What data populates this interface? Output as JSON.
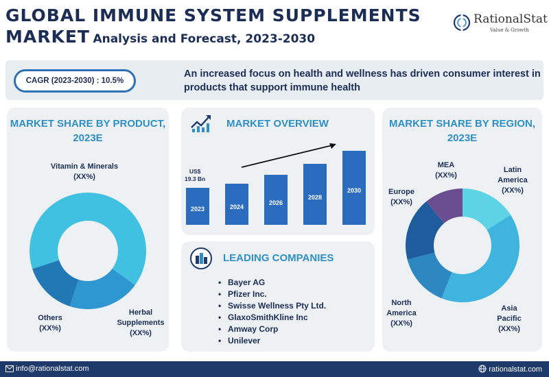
{
  "header": {
    "title_line1": "GLOBAL IMMUNE SYSTEM SUPPLEMENTS",
    "title_line2_big": "MARKET",
    "title_line2_small": "Analysis and Forecast, 2023-2030"
  },
  "logo": {
    "name": "RationalStat",
    "tagline": "Value & Growth"
  },
  "banner": {
    "cagr": "CAGR (2023-2030) : 10.5%",
    "headline": "An increased focus on health and wellness has driven consumer interest in products that support immune health"
  },
  "panels": {
    "product_title": "MARKET SHARE BY PRODUCT, 2023E",
    "overview_title": "MARKET OVERVIEW",
    "region_title": "MARKET SHARE BY REGION, 2023E",
    "companies_title": "LEADING COMPANIES"
  },
  "companies": [
    "Bayer AG",
    "Pfizer Inc.",
    "Swisse Wellness Pty Ltd.",
    "GlaxoSmithKline Inc",
    "Amway Corp",
    "Unilever"
  ],
  "footer": {
    "email": "info@rationalstat.com",
    "website": "rationalstat.com"
  },
  "chart_data": [
    {
      "type": "pie",
      "title": "MARKET SHARE BY PRODUCT, 2023E",
      "categories": [
        "Vitamin & Minerals",
        "Herbal Supplements",
        "Others"
      ],
      "values": [
        65,
        20,
        15
      ],
      "labels": [
        "(XX%)",
        "(XX%)",
        "(XX%)"
      ],
      "colors": [
        "#40c1e2",
        "#2f97cf",
        "#2278b5"
      ]
    },
    {
      "type": "bar",
      "title": "MARKET OVERVIEW",
      "categories": [
        "2023",
        "2024",
        "2026",
        "2028",
        "2030"
      ],
      "values": [
        19.3,
        21.3,
        26.0,
        31.7,
        38.6
      ],
      "data_labels": [
        "US$ 19.3 Bn",
        "",
        "",
        "",
        ""
      ],
      "color": "#2b6cbf"
    },
    {
      "type": "pie",
      "title": "MARKET SHARE BY REGION, 2023E",
      "categories": [
        "Latin America",
        "Asia Pacific",
        "North America",
        "Europe",
        "MEA"
      ],
      "values": [
        16,
        40,
        15,
        18,
        11
      ],
      "labels": [
        "(XX%)",
        "(XX%)",
        "(XX%)",
        "(XX%)",
        "(XX%)"
      ],
      "colors": [
        "#5fd3e6",
        "#3fb4de",
        "#2d88c2",
        "#1f5c9e",
        "#6b4e91"
      ]
    }
  ]
}
